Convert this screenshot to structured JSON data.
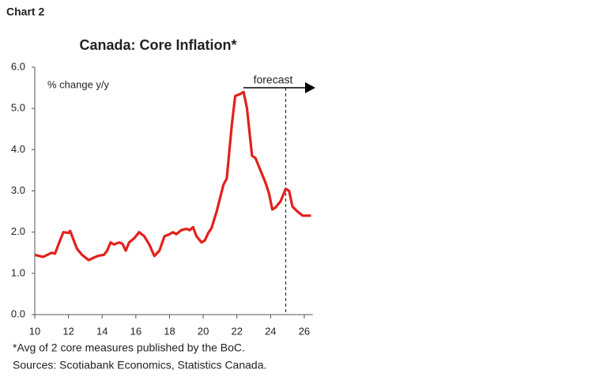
{
  "chart_data": {
    "type": "line",
    "label": "Chart 2",
    "title": "Canada: Core Inflation*",
    "y_label": "% change y/y",
    "notes": [
      "*Avg of 2 core measures published by the BoC.",
      "Sources: Scotiabank Economics, Statistics Canada."
    ],
    "annotation": {
      "text": "forecast",
      "x": 24.9
    },
    "x": [
      10.0,
      10.5,
      11.0,
      11.2,
      11.5,
      11.7,
      12.0,
      12.1,
      12.5,
      12.8,
      13.2,
      13.5,
      13.8,
      14.1,
      14.3,
      14.5,
      14.7,
      15.0,
      15.2,
      15.4,
      15.6,
      15.9,
      16.2,
      16.5,
      16.8,
      17.1,
      17.4,
      17.7,
      18.0,
      18.2,
      18.4,
      18.7,
      19.0,
      19.2,
      19.4,
      19.6,
      19.9,
      20.1,
      20.3,
      20.5,
      20.8,
      21.2,
      21.4,
      21.7,
      21.9,
      22.2,
      22.4,
      22.6,
      22.9,
      23.1,
      23.4,
      23.7,
      23.9,
      24.1,
      24.3,
      24.6,
      24.9,
      25.1,
      25.3,
      25.6,
      25.9,
      26.2,
      26.4
    ],
    "series": [
      {
        "name": "Core inflation",
        "color": "#e3201b",
        "values": [
          1.45,
          1.4,
          1.5,
          1.48,
          1.8,
          2.0,
          1.98,
          2.03,
          1.6,
          1.45,
          1.32,
          1.38,
          1.43,
          1.45,
          1.55,
          1.75,
          1.7,
          1.75,
          1.72,
          1.55,
          1.75,
          1.85,
          2.0,
          1.9,
          1.7,
          1.42,
          1.55,
          1.9,
          1.95,
          2.0,
          1.95,
          2.05,
          2.08,
          2.05,
          2.12,
          1.9,
          1.75,
          1.8,
          1.98,
          2.1,
          2.5,
          3.15,
          3.3,
          4.6,
          5.3,
          5.35,
          5.4,
          5.0,
          3.85,
          3.8,
          3.5,
          3.2,
          2.95,
          2.55,
          2.6,
          2.75,
          3.05,
          3.0,
          2.62,
          2.5,
          2.4,
          2.4,
          2.4
        ]
      }
    ],
    "xlim": [
      10,
      26.5
    ],
    "ylim": [
      0,
      6
    ],
    "xticks": [
      10,
      12,
      14,
      16,
      18,
      20,
      22,
      24,
      26
    ],
    "yticks": [
      {
        "value": 0,
        "label": "0.0"
      },
      {
        "value": 1,
        "label": "1.0"
      },
      {
        "value": 2,
        "label": "2.0"
      },
      {
        "value": 3,
        "label": "3.0"
      },
      {
        "value": 4,
        "label": "4.0"
      },
      {
        "value": 5,
        "label": "5.0"
      },
      {
        "value": 6,
        "label": "6.0"
      }
    ],
    "grid": false
  }
}
